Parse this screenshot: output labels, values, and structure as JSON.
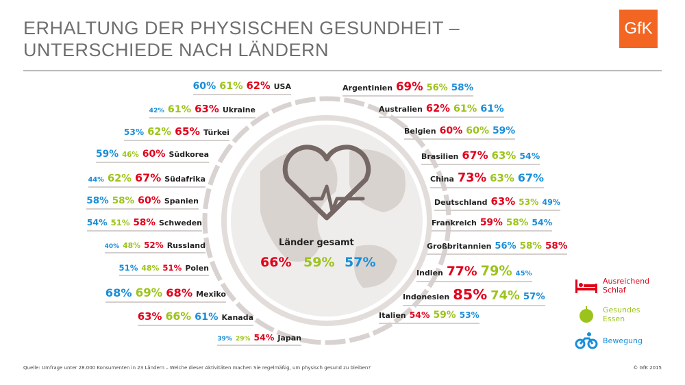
{
  "header": {
    "title_line1": "ERHALTUNG DER PHYSISCHEN GESUNDHEIT –",
    "title_line2": "UNTERSCHIEDE NACH LÄNDERN",
    "logo": "GfK"
  },
  "colors": {
    "schlaf": "#e2001a",
    "essen": "#9cc31b",
    "bewegung": "#1a8ed8"
  },
  "chart_data": {
    "type": "table",
    "metrics": {
      "schlaf": "Ausreichend Schlaf",
      "essen": "Gesundes Essen",
      "bewegung": "Bewegung"
    },
    "total": {
      "label": "Länder gesamt",
      "schlaf": 66,
      "essen": 59,
      "bewegung": 57
    },
    "left": [
      {
        "country": "USA",
        "order": [
          "bewegung",
          "essen",
          "schlaf"
        ],
        "schlaf": 62,
        "essen": 61,
        "bewegung": 60
      },
      {
        "country": "Ukraine",
        "order": [
          "bewegung",
          "essen",
          "schlaf"
        ],
        "schlaf": 63,
        "essen": 61,
        "bewegung": 42
      },
      {
        "country": "Türkei",
        "order": [
          "bewegung",
          "essen",
          "schlaf"
        ],
        "schlaf": 65,
        "essen": 62,
        "bewegung": 53
      },
      {
        "country": "Südkorea",
        "order": [
          "bewegung",
          "essen",
          "schlaf"
        ],
        "schlaf": 60,
        "essen": 46,
        "bewegung": 59
      },
      {
        "country": "Südafrika",
        "order": [
          "bewegung",
          "essen",
          "schlaf"
        ],
        "schlaf": 67,
        "essen": 62,
        "bewegung": 44
      },
      {
        "country": "Spanien",
        "order": [
          "bewegung",
          "essen",
          "schlaf"
        ],
        "schlaf": 60,
        "essen": 58,
        "bewegung": 58
      },
      {
        "country": "Schweden",
        "order": [
          "bewegung",
          "essen",
          "schlaf"
        ],
        "schlaf": 58,
        "essen": 51,
        "bewegung": 54
      },
      {
        "country": "Russland",
        "order": [
          "bewegung",
          "essen",
          "schlaf"
        ],
        "schlaf": 52,
        "essen": 48,
        "bewegung": 40
      },
      {
        "country": "Polen",
        "order": [
          "bewegung",
          "essen",
          "schlaf"
        ],
        "schlaf": 51,
        "essen": 48,
        "bewegung": 51
      },
      {
        "country": "Mexiko",
        "order": [
          "bewegung",
          "essen",
          "schlaf"
        ],
        "schlaf": 68,
        "essen": 69,
        "bewegung": 68
      },
      {
        "country": "Kanada",
        "order": [
          "schlaf",
          "essen",
          "bewegung"
        ],
        "schlaf": 63,
        "essen": 66,
        "bewegung": 61
      },
      {
        "country": "Japan",
        "order": [
          "bewegung",
          "essen",
          "schlaf"
        ],
        "schlaf": 54,
        "essen": 29,
        "bewegung": 39
      }
    ],
    "right": [
      {
        "country": "Argentinien",
        "order": [
          "schlaf",
          "essen",
          "bewegung"
        ],
        "schlaf": 69,
        "essen": 56,
        "bewegung": 58
      },
      {
        "country": "Australien",
        "order": [
          "schlaf",
          "essen",
          "bewegung"
        ],
        "schlaf": 62,
        "essen": 61,
        "bewegung": 61
      },
      {
        "country": "Belgien",
        "order": [
          "schlaf",
          "essen",
          "bewegung"
        ],
        "schlaf": 60,
        "essen": 60,
        "bewegung": 59
      },
      {
        "country": "Brasilien",
        "order": [
          "schlaf",
          "essen",
          "bewegung"
        ],
        "schlaf": 67,
        "essen": 63,
        "bewegung": 54
      },
      {
        "country": "China",
        "order": [
          "schlaf",
          "essen",
          "bewegung"
        ],
        "schlaf": 73,
        "essen": 63,
        "bewegung": 67
      },
      {
        "country": "Deutschland",
        "order": [
          "schlaf",
          "essen",
          "bewegung"
        ],
        "schlaf": 63,
        "essen": 53,
        "bewegung": 49
      },
      {
        "country": "Frankreich",
        "order": [
          "schlaf",
          "essen",
          "bewegung"
        ],
        "schlaf": 59,
        "essen": 58,
        "bewegung": 54
      },
      {
        "country": "Großbritannien",
        "order": [
          "bewegung",
          "essen",
          "schlaf"
        ],
        "schlaf": 58,
        "essen": 58,
        "bewegung": 56
      },
      {
        "country": "Indien",
        "order": [
          "schlaf",
          "essen",
          "bewegung"
        ],
        "schlaf": 77,
        "essen": 79,
        "bewegung": 45
      },
      {
        "country": "Indonesien",
        "order": [
          "schlaf",
          "essen",
          "bewegung"
        ],
        "schlaf": 85,
        "essen": 74,
        "bewegung": 57
      },
      {
        "country": "Italien",
        "order": [
          "schlaf",
          "essen",
          "bewegung"
        ],
        "schlaf": 54,
        "essen": 59,
        "bewegung": 53
      }
    ]
  },
  "legend": [
    {
      "key": "schlaf",
      "line1": "Ausreichend",
      "line2": "Schlaf",
      "icon": "bed-icon"
    },
    {
      "key": "essen",
      "line1": "Gesundes",
      "line2": "Essen",
      "icon": "apple-icon"
    },
    {
      "key": "bewegung",
      "line1": "Bewegung",
      "line2": "",
      "icon": "bicycle-icon"
    }
  ],
  "footer": {
    "source": "Quelle: Umfrage unter 28.000 Konsumenten in 23 Ländern – Welche dieser Aktivitäten machen Sie regelmäßig, um physisch gesund zu bleiben?",
    "copyright": "© GfK 2015"
  }
}
